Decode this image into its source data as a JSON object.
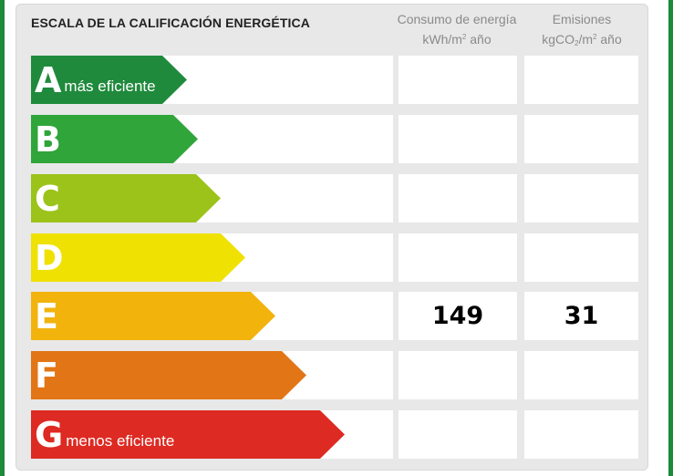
{
  "header": {
    "title": "ESCALA DE LA CALIFICACIÓN ENERGÉTICA",
    "consumo_line1": "Consumo de energía",
    "consumo_unit_a": "kWh/m",
    "consumo_unit_sup": "2",
    "consumo_unit_b": " año",
    "emisiones_line1": "Emisiones",
    "emisiones_unit_a": "kgCO",
    "emisiones_unit_sub": "2",
    "emisiones_unit_b": "/m",
    "emisiones_unit_sup": "2",
    "emisiones_unit_c": " año"
  },
  "ratings": [
    {
      "letter": "A",
      "desc": "más eficiente",
      "color": "#1f8a3c",
      "consumo": "",
      "emisiones": ""
    },
    {
      "letter": "B",
      "desc": "",
      "color": "#2fa53a",
      "consumo": "",
      "emisiones": ""
    },
    {
      "letter": "C",
      "desc": "",
      "color": "#9cc31a",
      "consumo": "",
      "emisiones": ""
    },
    {
      "letter": "D",
      "desc": "",
      "color": "#efe102",
      "consumo": "",
      "emisiones": ""
    },
    {
      "letter": "E",
      "desc": "",
      "color": "#f2b30d",
      "consumo": "149",
      "emisiones": "31"
    },
    {
      "letter": "F",
      "desc": "",
      "color": "#e27516",
      "consumo": "",
      "emisiones": ""
    },
    {
      "letter": "G",
      "desc": "menos eficiente",
      "color": "#dd2a22",
      "consumo": "",
      "emisiones": ""
    }
  ]
}
